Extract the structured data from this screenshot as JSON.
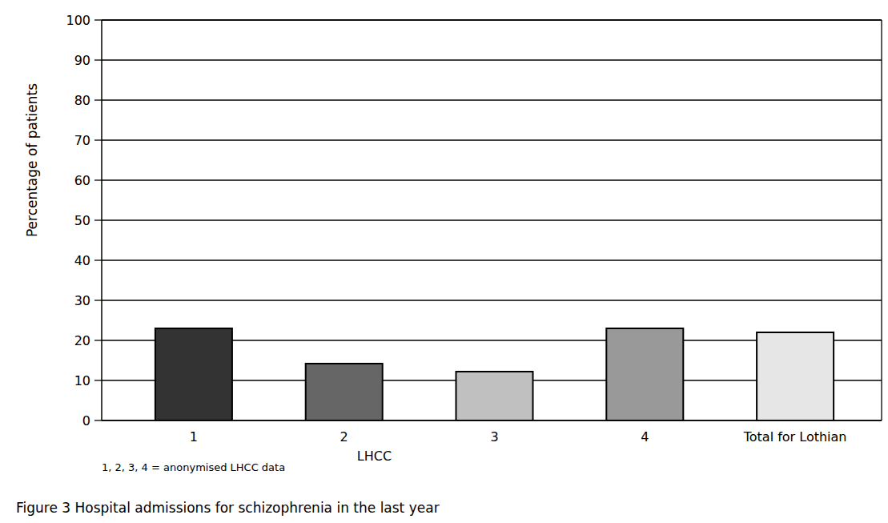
{
  "chart_data": {
    "type": "bar",
    "title": "Figure 3  Hospital admissions for schizophrenia in the last year",
    "x_label": "LHCC",
    "y_label": "Percentage of patients",
    "annotations": [
      "1, 2, 3, 4 = anonymised LHCC data"
    ],
    "categories": [
      "1",
      "2",
      "3",
      "4",
      "Total for Lothian"
    ],
    "values": [
      23,
      14.2,
      12.2,
      23,
      22
    ],
    "colors": [
      "#333333",
      "#666666",
      "#c0c0c0",
      "#999999",
      "#e6e6e6"
    ],
    "ylim": [
      0,
      100
    ],
    "yticks": [
      0,
      10,
      20,
      30,
      40,
      50,
      60,
      70,
      80,
      90,
      100
    ],
    "grid": true
  }
}
